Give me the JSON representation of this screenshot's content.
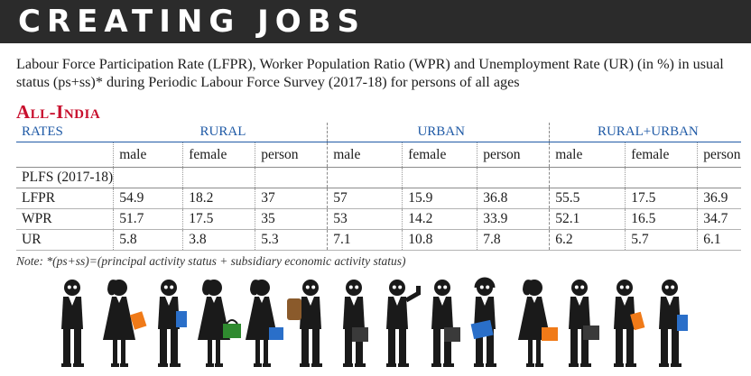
{
  "banner": {
    "title": "CREATING JOBS"
  },
  "description": "Labour Force Participation Rate (LFPR), Worker Population Ratio (WPR) and Unemployment Rate (UR) (in %) in usual status (ps+ss)* during Periodic Labour Force Survey (2017-18) for persons of all ages",
  "region": "All-India",
  "table": {
    "rates_label": "RATES",
    "groups": [
      "RURAL",
      "URBAN",
      "RURAL+URBAN"
    ],
    "subheaders": [
      "male",
      "female",
      "person"
    ],
    "survey_label": "PLFS (2017-18)",
    "rows": [
      {
        "label": "LFPR",
        "values": [
          "54.9",
          "18.2",
          "37",
          "57",
          "15.9",
          "36.8",
          "55.5",
          "17.5",
          "36.9"
        ]
      },
      {
        "label": "WPR",
        "values": [
          "51.7",
          "17.5",
          "35",
          "53",
          "14.2",
          "33.9",
          "52.1",
          "16.5",
          "34.7"
        ]
      },
      {
        "label": "UR",
        "values": [
          "5.8",
          "3.8",
          "5.3",
          "7.1",
          "10.8",
          "7.8",
          "6.2",
          "5.7",
          "6.1"
        ]
      }
    ]
  },
  "note": "Note: *(ps+ss)=(principal activity status + subsidiary economic activity status)",
  "colors": {
    "banner_bg": "#2b2b2b",
    "region_red": "#c8102e",
    "header_blue": "#1f5aa6",
    "bag_orange": "#f07a18",
    "bag_blue": "#2a6fc9",
    "bag_green": "#2f8a2f",
    "bag_dark": "#3a3a3a"
  },
  "illustration": {
    "figures": [
      {
        "icon": "man-with-glasses-icon"
      },
      {
        "icon": "woman-with-orange-bag-icon"
      },
      {
        "icon": "man-with-blue-folder-icon"
      },
      {
        "icon": "woman-with-green-bag-icon"
      },
      {
        "icon": "woman-with-blue-bag-icon"
      },
      {
        "icon": "man-with-backpack-icon"
      },
      {
        "icon": "man-with-briefcase-icon"
      },
      {
        "icon": "man-with-phone-icon"
      },
      {
        "icon": "man-with-briefcase-icon"
      },
      {
        "icon": "man-with-headphones-icon"
      },
      {
        "icon": "woman-with-orange-bag-icon"
      },
      {
        "icon": "man-with-briefcase-icon"
      },
      {
        "icon": "man-with-orange-folder-icon"
      },
      {
        "icon": "man-with-blue-folder-icon"
      }
    ]
  }
}
